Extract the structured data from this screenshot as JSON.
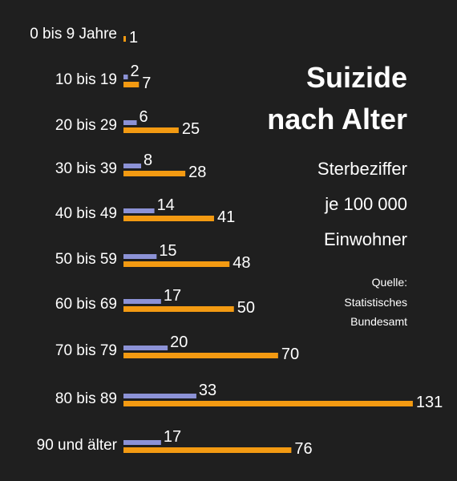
{
  "chart_data": {
    "type": "bar",
    "orientation": "horizontal",
    "title": "Suizide nach Alter",
    "subtitle": [
      "Sterbeziffer",
      "je 100 000",
      "Einwohner"
    ],
    "source": [
      "Quelle:",
      "Statistisches",
      "Bundesamt"
    ],
    "categories": [
      "0 bis 9 Jahre",
      "10 bis 19",
      "20 bis 29",
      "30 bis 39",
      "40 bis 49",
      "50 bis 59",
      "60 bis 69",
      "70 bis 79",
      "80 bis 89",
      "90 und älter"
    ],
    "series": [
      {
        "color": "#8c92d6",
        "values": [
          null,
          2,
          6,
          8,
          14,
          15,
          17,
          20,
          33,
          17
        ]
      },
      {
        "color": "#f39a12",
        "values": [
          1,
          7,
          25,
          28,
          41,
          48,
          50,
          70,
          131,
          76
        ]
      }
    ],
    "grid": false,
    "legend": "none"
  }
}
